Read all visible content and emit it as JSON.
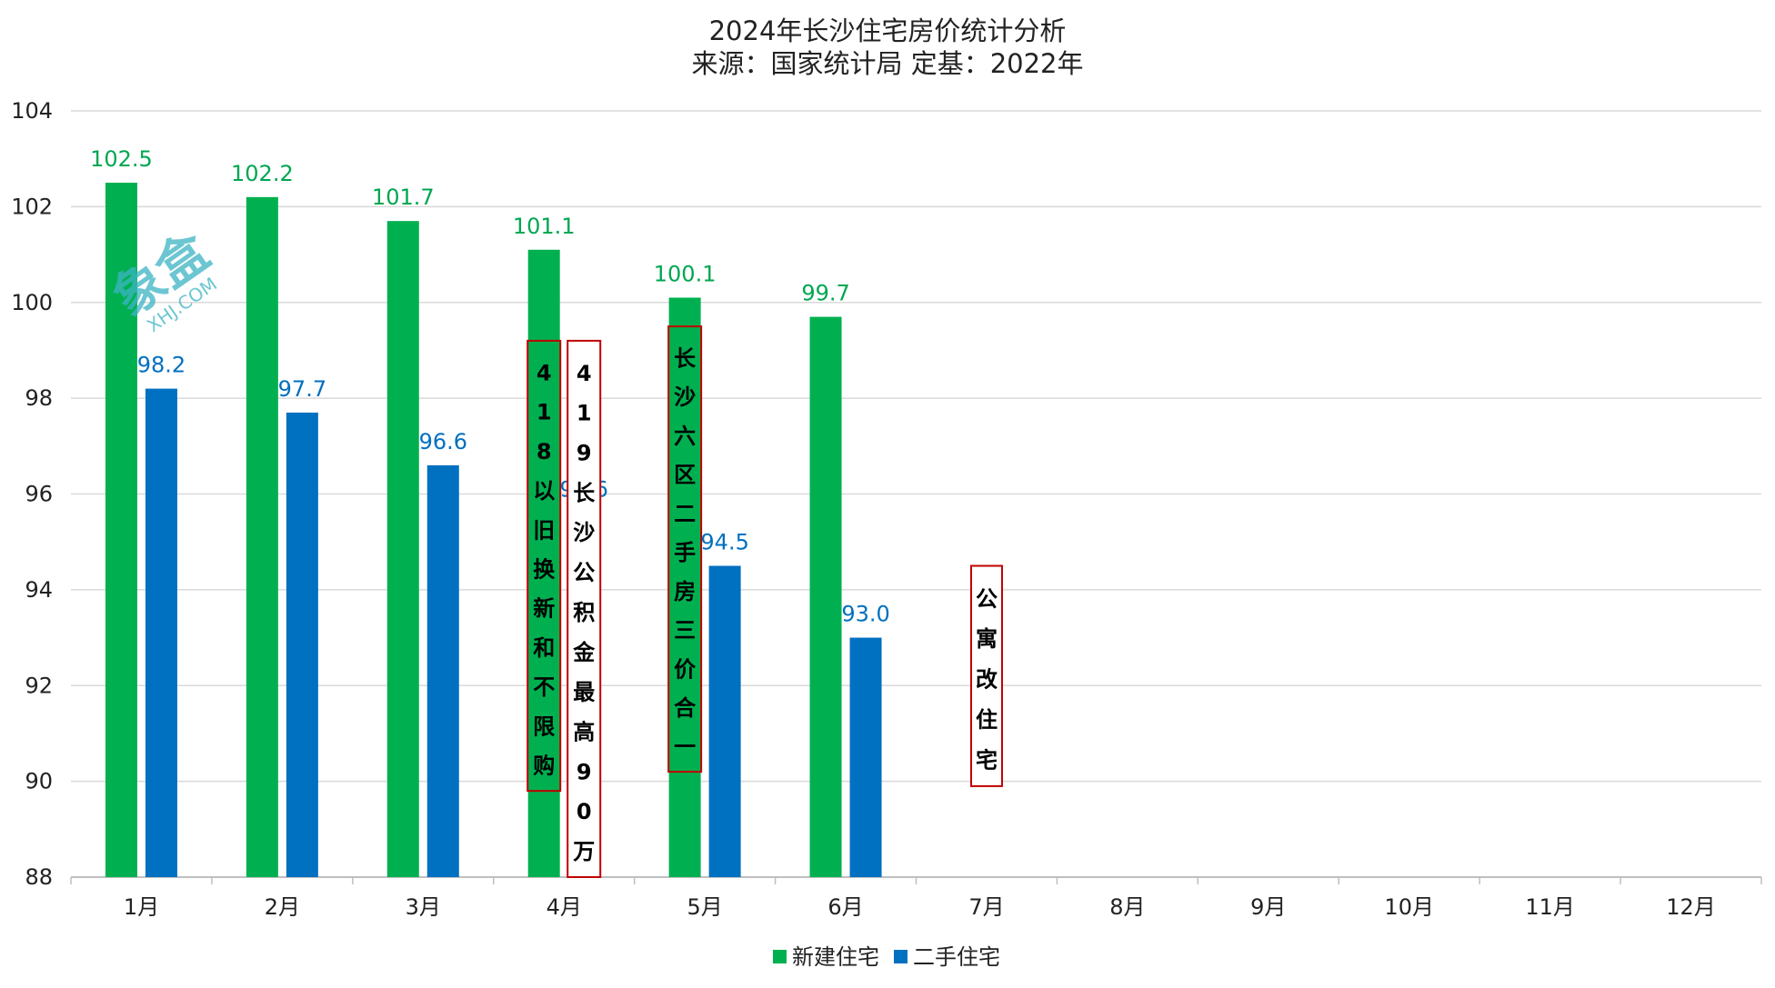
{
  "chart_data": {
    "type": "bar",
    "title": "2024年长沙住宅房价统计分析",
    "subtitle": "来源：国家统计局 定基：2022年",
    "categories": [
      "1月",
      "2月",
      "3月",
      "4月",
      "5月",
      "6月",
      "7月",
      "8月",
      "9月",
      "10月",
      "11月",
      "12月"
    ],
    "series": [
      {
        "name": "新建住宅",
        "color": "#00b050",
        "label_color": "#00a651",
        "values": [
          102.5,
          102.2,
          101.7,
          101.1,
          100.1,
          99.7,
          null,
          null,
          null,
          null,
          null,
          null
        ],
        "labels": [
          "102.5",
          "102.2",
          "101.7",
          "101.1",
          "100.1",
          "99.7"
        ]
      },
      {
        "name": "二手住宅",
        "color": "#0070c0",
        "label_color": "#0070c0",
        "values": [
          98.2,
          97.7,
          96.6,
          95.6,
          94.5,
          93.0,
          null,
          null,
          null,
          null,
          null,
          null
        ],
        "labels": [
          "98.2",
          "97.7",
          "96.6",
          "95.6",
          "94.5",
          "93.0"
        ]
      }
    ],
    "ylim": [
      88,
      104
    ],
    "yticks": [
      88,
      90,
      92,
      94,
      96,
      98,
      100,
      102,
      104
    ],
    "grid": true,
    "legend_position": "bottom",
    "annotations": [
      {
        "text": "418以旧换新和不限购",
        "month_index": 3,
        "anchor": "新建住宅",
        "y_top": 99.2,
        "y_bottom": 89.8,
        "border": "#c00000",
        "fill": "none"
      },
      {
        "text": "419长沙公积金最高90万",
        "month_index": 3,
        "anchor": "二手住宅",
        "y_top": 99.2,
        "y_bottom": 88.0,
        "border": "#c00000",
        "fill": "#ffffff"
      },
      {
        "text": "长沙六区二手房三价合一",
        "month_index": 4,
        "anchor": "新建住宅",
        "y_top": 99.5,
        "y_bottom": 90.2,
        "border": "#c00000",
        "fill": "none"
      },
      {
        "text": "公寓改住宅",
        "month_index": 6,
        "anchor": "center",
        "y_top": 94.5,
        "y_bottom": 89.9,
        "border": "#c00000",
        "fill": "#ffffff"
      }
    ],
    "watermark": {
      "text": "象盒",
      "subtext": "XHJ.COM"
    }
  }
}
